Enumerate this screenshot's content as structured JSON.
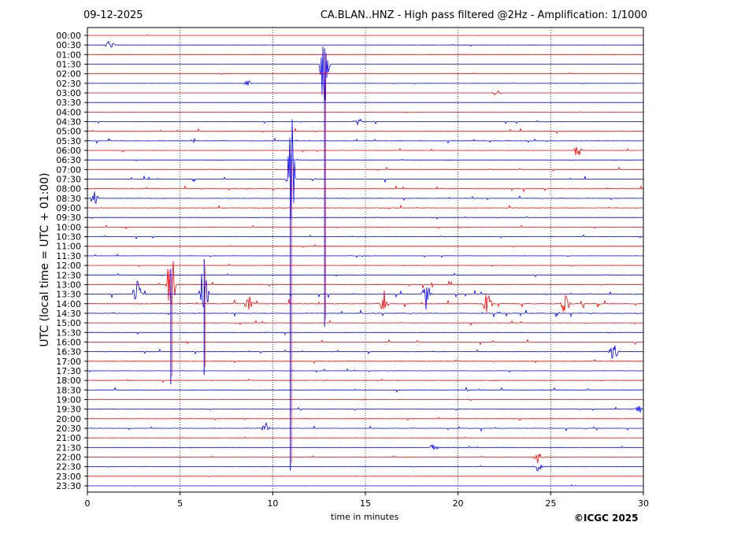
{
  "header": {
    "date": "09-12-2025",
    "title": "CA.BLAN..HNZ - High pass filtered @2Hz - Amplification: 1/1000"
  },
  "copyright": "©ICGC 2025",
  "chart_data": {
    "type": "line",
    "xlabel": "time in minutes",
    "ylabel": "UTC (local time = UTC + 01:00)",
    "xlim": [
      0,
      30
    ],
    "xticks": [
      "0",
      "5",
      "10",
      "15",
      "20",
      "25",
      "30"
    ],
    "grid": "vertical dotted at x ticks",
    "row_labels": [
      "00:00",
      "00:30",
      "01:00",
      "01:30",
      "02:00",
      "02:30",
      "03:00",
      "03:30",
      "04:00",
      "04:30",
      "05:00",
      "05:30",
      "06:00",
      "06:30",
      "07:00",
      "07:30",
      "08:00",
      "08:30",
      "09:00",
      "09:30",
      "10:00",
      "10:30",
      "11:00",
      "11:30",
      "12:00",
      "12:30",
      "13:00",
      "13:30",
      "14:00",
      "14:30",
      "15:00",
      "15:30",
      "16:00",
      "16:30",
      "17:00",
      "17:30",
      "18:00",
      "18:30",
      "19:00",
      "19:30",
      "20:00",
      "20:30",
      "21:00",
      "21:30",
      "22:00",
      "22:30",
      "23:00",
      "23:30"
    ],
    "colors": {
      "hour_rows": "#ff0000",
      "half_hour_rows": "#0000ff"
    },
    "activity": [
      0.2,
      0.4,
      0.15,
      0.2,
      0.3,
      0.3,
      0.1,
      0.1,
      0.3,
      0.7,
      0.8,
      0.8,
      0.7,
      0.3,
      0.8,
      1.0,
      1.0,
      0.9,
      0.8,
      0.6,
      0.6,
      0.7,
      0.5,
      0.5,
      0.5,
      0.6,
      1.2,
      1.3,
      1.5,
      1.2,
      0.7,
      0.7,
      0.8,
      0.8,
      0.8,
      0.7,
      0.8,
      0.8,
      0.6,
      0.6,
      0.6,
      0.8,
      0.5,
      0.4,
      0.4,
      0.4,
      0.3,
      0.3
    ],
    "events": [
      {
        "row": "00:30",
        "minute": 1.2,
        "amp": 0.5
      },
      {
        "row": "02:30",
        "minute": 8.7,
        "amp": 0.4
      },
      {
        "row": "03:00",
        "minute": 22.1,
        "amp": 0.4
      },
      {
        "row": "04:30",
        "minute": 14.6,
        "amp": 0.5
      },
      {
        "row": "06:00",
        "minute": 26.5,
        "amp": 0.6
      },
      {
        "row": "07:30",
        "minute": 11.0,
        "amp": 8.0
      },
      {
        "row": "01:30",
        "minute": 12.8,
        "amp": 6.0
      },
      {
        "row": "08:30",
        "minute": 0.4,
        "amp": 0.8
      },
      {
        "row": "13:00",
        "minute": 4.5,
        "amp": 4.5
      },
      {
        "row": "13:30",
        "minute": 6.3,
        "amp": 4.0
      },
      {
        "row": "13:30",
        "minute": 2.7,
        "amp": 1.5
      },
      {
        "row": "13:30",
        "minute": 18.3,
        "amp": 2.2
      },
      {
        "row": "14:00",
        "minute": 21.6,
        "amp": 1.5
      },
      {
        "row": "14:00",
        "minute": 25.8,
        "amp": 1.2
      },
      {
        "row": "14:00",
        "minute": 16.0,
        "amp": 1.5
      },
      {
        "row": "14:00",
        "minute": 8.7,
        "amp": 0.8
      },
      {
        "row": "16:30",
        "minute": 28.4,
        "amp": 1.0
      },
      {
        "row": "19:30",
        "minute": 29.8,
        "amp": 0.5
      },
      {
        "row": "20:30",
        "minute": 9.6,
        "amp": 0.7
      },
      {
        "row": "21:30",
        "minute": 18.7,
        "amp": 0.5
      },
      {
        "row": "22:00",
        "minute": 24.3,
        "amp": 0.8
      },
      {
        "row": "22:30",
        "minute": 24.3,
        "amp": 0.6
      }
    ],
    "long_traces": [
      {
        "minute": 10.95,
        "from": "06:30",
        "to": "22:30"
      },
      {
        "minute": 12.8,
        "from": "01:00",
        "to": "15:00"
      },
      {
        "minute": 6.3,
        "from": "12:00",
        "to": "17:30"
      },
      {
        "minute": 4.5,
        "from": "12:30",
        "to": "18:00"
      }
    ]
  }
}
